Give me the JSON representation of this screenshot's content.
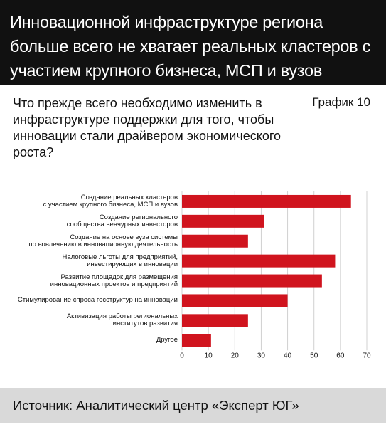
{
  "header": {
    "title": "Инновационной инфраструктуре региона больше всего не хватает реальных кластеров с участием крупного бизнеса, МСП и вузов"
  },
  "question": "Что прежде всего необходимо изменить в инфраструктуре поддержки для того, чтобы инновации стали драйвером экономического роста?",
  "chart_label": "График 10",
  "chart_data": {
    "type": "bar",
    "orientation": "horizontal",
    "categories": [
      "Создание реальных кластеров\nс участием крупного бизнеса, МСП и вузов",
      "Создание регионального\nсообщества венчурных инвесторов",
      "Создание на основе вуза системы\nпо вовлечению в инновационную деятельность",
      "Налоговые льготы для предприятий,\nинвестирующих в инновации",
      "Развитие площадок для размещения\nинновационных проектов и предприятий",
      "Стимулирование спроса госструктур на инновации",
      "Активизация работы региональных\nинститутов развития",
      "Другое"
    ],
    "values": [
      64,
      31,
      25,
      58,
      53,
      40,
      25,
      11
    ],
    "color": "#d0141e",
    "xlim": [
      0,
      70
    ],
    "xticks": [
      0,
      10,
      20,
      30,
      40,
      50,
      60,
      70
    ],
    "grid": true
  },
  "source": "Источник: Аналитический центр «Эксперт ЮГ»"
}
